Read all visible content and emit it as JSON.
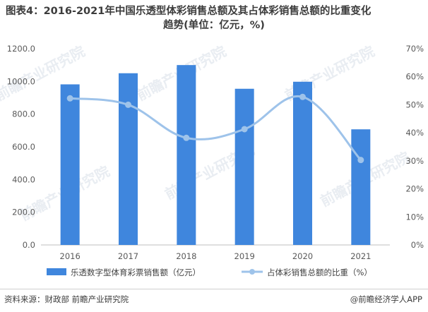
{
  "title_line1": "图表4：2016-2021年中国乐透型体彩销售总额及其占体彩销售总额的比重变化",
  "title_line2": "趋势(单位：亿元，%)",
  "watermark_text": "前瞻产业研究院",
  "source": "资料来源：财政部 前瞻产业研究院",
  "credit": "@前瞻经济学人APP",
  "colors": {
    "bar": "#3f86dd",
    "line": "#9ec3ea",
    "axis_text": "#595959",
    "grid": "#e6e6e6",
    "watermark": "#e9edf2"
  },
  "chart_data": {
    "type": "bar",
    "categories": [
      "2016",
      "2017",
      "2018",
      "2019",
      "2020",
      "2021"
    ],
    "series": [
      {
        "name": "乐透数字型体育彩票销售额（亿元）",
        "type": "bar",
        "axis": "left",
        "values": [
          982,
          1050,
          1100,
          955,
          998,
          707
        ]
      },
      {
        "name": "占体彩销售总额的比重（%）",
        "type": "line",
        "axis": "right",
        "values": [
          52.3,
          50.0,
          38.2,
          41.3,
          52.8,
          30.3
        ]
      }
    ],
    "y_left": {
      "min": 0,
      "max": 1200,
      "step": 200,
      "tick_labels": [
        "0.0",
        "200.0",
        "400.0",
        "600.0",
        "800.0",
        "1000.0",
        "1200.0"
      ]
    },
    "y_right": {
      "min": 0,
      "max": 70,
      "step": 10,
      "tick_labels": [
        "0%",
        "10%",
        "20%",
        "30%",
        "40%",
        "50%",
        "60%",
        "70%"
      ]
    },
    "grid": false,
    "legend_position": "bottom"
  }
}
